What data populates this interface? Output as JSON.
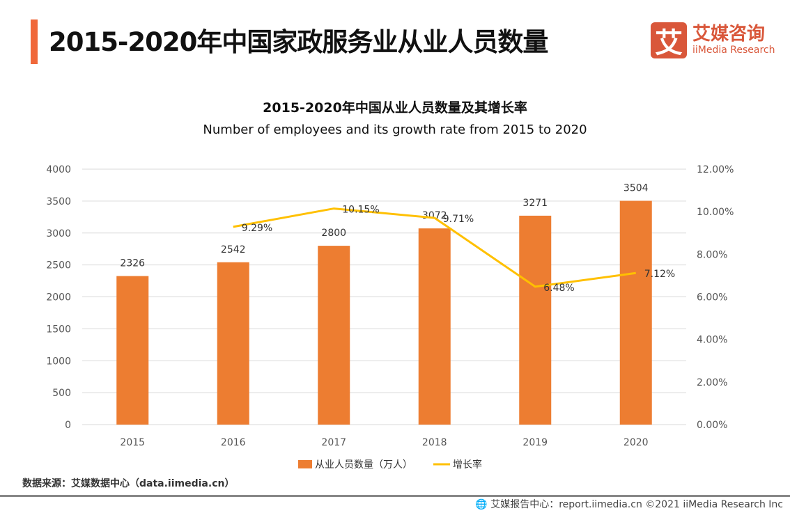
{
  "header": {
    "title": "2015-2020年中国家政服务业从业人员数量",
    "logo_cn": "艾媒咨询",
    "logo_en": "iiMedia Research",
    "logo_mark": "艾"
  },
  "chart_data": {
    "type": "bar+line",
    "title": "2015-2020年中国从业人员数量及其增长率",
    "subtitle": "Number of employees and its growth rate from 2015 to 2020",
    "categories": [
      "2015",
      "2016",
      "2017",
      "2018",
      "2019",
      "2020"
    ],
    "series": [
      {
        "name": "从业人员数量（万人）",
        "type": "bar",
        "axis": "left",
        "color": "#ed7d31",
        "values": [
          2326,
          2542,
          2800,
          3072,
          3271,
          3504
        ],
        "labels": [
          "2326",
          "2542",
          "2800",
          "3072",
          "3271",
          "3504"
        ]
      },
      {
        "name": "增长率",
        "type": "line",
        "axis": "right",
        "color": "#ffc000",
        "values": [
          null,
          9.29,
          10.15,
          9.71,
          6.48,
          7.12
        ],
        "labels": [
          "",
          "9.29%",
          "10.15%",
          "9.71%",
          "6.48%",
          "7.12%"
        ]
      }
    ],
    "ylim": [
      0,
      4000
    ],
    "yticks": [
      "0",
      "500",
      "1000",
      "1500",
      "2000",
      "2500",
      "3000",
      "3500",
      "4000"
    ],
    "y2lim": [
      0,
      12
    ],
    "y2ticks": [
      "0.00%",
      "2.00%",
      "4.00%",
      "6.00%",
      "8.00%",
      "10.00%",
      "12.00%"
    ],
    "grid": true,
    "legend": "bottom"
  },
  "footer": {
    "source": "数据来源：艾媒数据中心（data.iimedia.cn）",
    "copyright": "艾媒报告中心：report.iimedia.cn ©2021 iiMedia Research Inc"
  }
}
